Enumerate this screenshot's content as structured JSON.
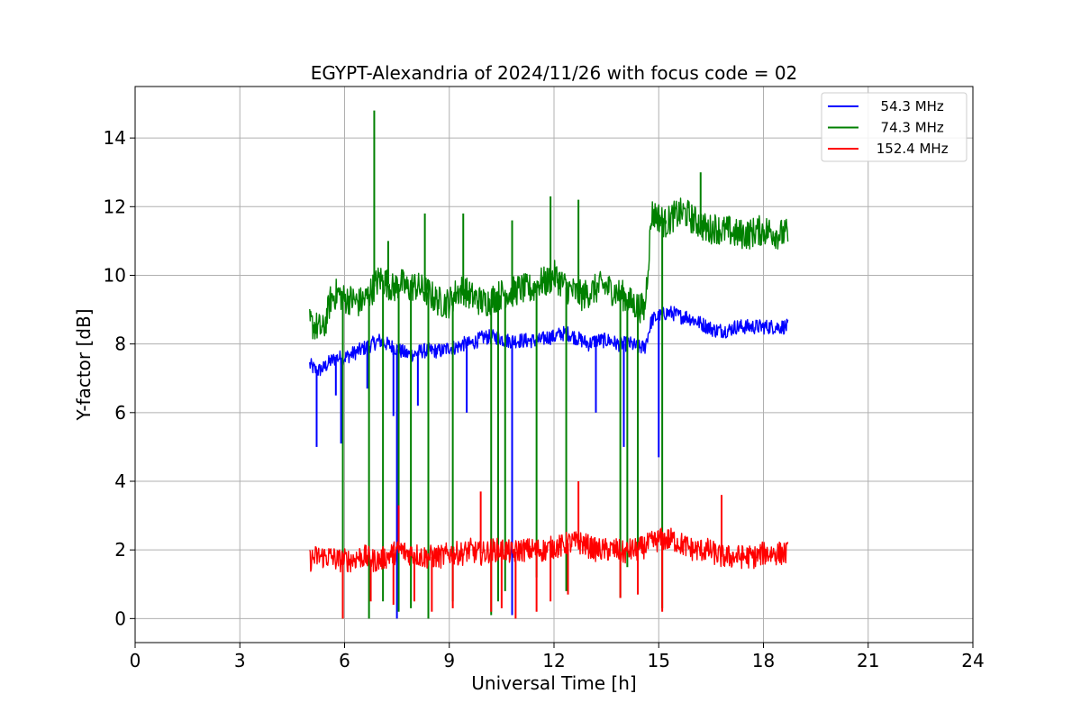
{
  "chart_data": {
    "type": "line",
    "title": "EGYPT-Alexandria of 2024/11/26 with focus code = 02",
    "xlabel": "Universal Time [h]",
    "ylabel": "Y-factor [dB]",
    "xlim": [
      0,
      24
    ],
    "ylim": [
      -0.7,
      15.5
    ],
    "xticks": [
      0,
      3,
      6,
      9,
      12,
      15,
      18,
      21,
      24
    ],
    "yticks": [
      0,
      2,
      4,
      6,
      8,
      10,
      12,
      14
    ],
    "grid": true,
    "legend_position": "top-right",
    "series": [
      {
        "name": "  54.3 MHz",
        "color": "#0000ff",
        "x": [
          5.0,
          5.2,
          5.4,
          5.6,
          5.8,
          6.0,
          6.2,
          6.4,
          6.6,
          6.8,
          7.0,
          7.2,
          7.4,
          7.6,
          7.8,
          8.0,
          8.2,
          8.4,
          8.6,
          8.8,
          9.0,
          9.2,
          9.4,
          9.6,
          9.8,
          10.0,
          10.2,
          10.4,
          10.6,
          10.8,
          11.0,
          11.2,
          11.4,
          11.6,
          11.8,
          12.0,
          12.2,
          12.4,
          12.6,
          12.8,
          13.0,
          13.2,
          13.4,
          13.6,
          13.8,
          14.0,
          14.2,
          14.4,
          14.6,
          14.8,
          15.0,
          15.2,
          15.4,
          15.6,
          15.8,
          16.0,
          16.2,
          16.4,
          16.6,
          16.8,
          17.0,
          17.2,
          17.4,
          17.6,
          17.8,
          18.0,
          18.2,
          18.4,
          18.7
        ],
        "values": [
          7.4,
          7.2,
          7.3,
          7.5,
          7.6,
          7.6,
          7.7,
          7.8,
          7.9,
          8.0,
          8.1,
          8.0,
          7.9,
          7.8,
          7.7,
          7.7,
          7.8,
          7.8,
          7.8,
          7.8,
          7.9,
          7.9,
          8.0,
          8.0,
          8.1,
          8.2,
          8.2,
          8.2,
          8.1,
          8.1,
          8.1,
          8.1,
          8.1,
          8.1,
          8.2,
          8.2,
          8.3,
          8.3,
          8.2,
          8.1,
          8.0,
          8.1,
          8.1,
          8.1,
          8.0,
          8.0,
          8.0,
          7.9,
          7.9,
          8.7,
          8.8,
          8.9,
          8.9,
          8.8,
          8.8,
          8.7,
          8.6,
          8.5,
          8.4,
          8.4,
          8.4,
          8.5,
          8.5,
          8.5,
          8.5,
          8.5,
          8.5,
          8.5,
          8.5
        ]
      },
      {
        "name": "  74.3 MHz",
        "color": "#008000",
        "x": [
          5.0,
          5.2,
          5.4,
          5.6,
          5.8,
          6.0,
          6.2,
          6.4,
          6.6,
          6.8,
          7.0,
          7.2,
          7.4,
          7.6,
          7.8,
          8.0,
          8.2,
          8.4,
          8.6,
          8.8,
          9.0,
          9.2,
          9.4,
          9.6,
          9.8,
          10.0,
          10.2,
          10.4,
          10.6,
          10.8,
          11.0,
          11.2,
          11.4,
          11.6,
          11.8,
          12.0,
          12.2,
          12.4,
          12.6,
          12.8,
          13.0,
          13.2,
          13.4,
          13.6,
          13.8,
          14.0,
          14.2,
          14.4,
          14.6,
          14.8,
          15.0,
          15.2,
          15.4,
          15.6,
          15.8,
          16.0,
          16.2,
          16.4,
          16.6,
          16.8,
          17.0,
          17.2,
          17.4,
          17.6,
          17.8,
          18.0,
          18.2,
          18.4,
          18.7
        ],
        "values": [
          8.6,
          8.5,
          8.4,
          9.3,
          9.5,
          9.3,
          9.3,
          9.2,
          9.3,
          9.6,
          9.9,
          9.8,
          9.6,
          9.8,
          9.6,
          9.7,
          9.6,
          9.5,
          9.3,
          9.2,
          9.2,
          9.5,
          9.6,
          9.4,
          9.3,
          9.2,
          9.3,
          9.4,
          9.5,
          9.5,
          9.6,
          9.6,
          9.6,
          9.8,
          9.8,
          10.0,
          9.8,
          9.6,
          9.5,
          9.4,
          9.5,
          9.6,
          9.7,
          9.6,
          9.5,
          9.4,
          9.2,
          9.1,
          9.0,
          11.8,
          11.7,
          11.5,
          11.7,
          11.8,
          11.8,
          11.6,
          11.5,
          11.3,
          11.4,
          11.3,
          11.3,
          11.2,
          11.2,
          11.2,
          11.3,
          11.3,
          11.3,
          11.2,
          11.2
        ]
      },
      {
        "name": " 152.4 MHz",
        "color": "#ff0000",
        "x": [
          5.0,
          5.2,
          5.4,
          5.6,
          5.8,
          6.0,
          6.2,
          6.4,
          6.6,
          6.8,
          7.0,
          7.2,
          7.4,
          7.6,
          7.8,
          8.0,
          8.2,
          8.4,
          8.6,
          8.8,
          9.0,
          9.2,
          9.4,
          9.6,
          9.8,
          10.0,
          10.2,
          10.4,
          10.6,
          10.8,
          11.0,
          11.2,
          11.4,
          11.6,
          11.8,
          12.0,
          12.2,
          12.4,
          12.6,
          12.8,
          13.0,
          13.2,
          13.4,
          13.6,
          13.8,
          14.0,
          14.2,
          14.4,
          14.6,
          14.8,
          15.0,
          15.2,
          15.4,
          15.6,
          15.8,
          16.0,
          16.2,
          16.4,
          16.6,
          16.8,
          17.0,
          17.2,
          17.4,
          17.6,
          17.8,
          18.0,
          18.2,
          18.4,
          18.7
        ],
        "values": [
          1.7,
          1.8,
          1.8,
          1.8,
          1.7,
          1.7,
          1.7,
          1.8,
          1.8,
          1.7,
          1.7,
          1.8,
          1.9,
          2.0,
          1.9,
          1.9,
          1.8,
          1.8,
          1.8,
          1.8,
          1.9,
          1.9,
          1.9,
          2.0,
          1.9,
          1.9,
          2.0,
          2.0,
          2.0,
          1.9,
          2.0,
          2.0,
          2.0,
          2.0,
          2.0,
          2.1,
          2.1,
          2.2,
          2.2,
          2.2,
          2.1,
          2.0,
          2.0,
          2.0,
          2.0,
          1.9,
          2.0,
          2.0,
          2.1,
          2.2,
          2.3,
          2.3,
          2.3,
          2.2,
          2.1,
          2.0,
          2.0,
          2.0,
          1.9,
          1.8,
          1.8,
          1.8,
          1.8,
          1.8,
          1.8,
          1.9,
          1.9,
          1.9,
          1.9
        ]
      }
    ],
    "spikes": {
      "54.3 MHz": [
        [
          5.2,
          5.0
        ],
        [
          5.75,
          6.5
        ],
        [
          5.9,
          5.1
        ],
        [
          6.65,
          6.7
        ],
        [
          7.4,
          5.9
        ],
        [
          7.5,
          0.0
        ],
        [
          8.1,
          6.2
        ],
        [
          9.5,
          6.0
        ],
        [
          10.8,
          0.1
        ],
        [
          13.2,
          6.0
        ],
        [
          14.0,
          5.0
        ],
        [
          14.4,
          3.2
        ],
        [
          15.0,
          4.7
        ]
      ],
      "74.3 MHz": [
        [
          5.95,
          0.0
        ],
        [
          6.7,
          0.0
        ],
        [
          6.85,
          14.8
        ],
        [
          7.1,
          0.5
        ],
        [
          7.25,
          11.0
        ],
        [
          7.55,
          0.2
        ],
        [
          7.9,
          0.3
        ],
        [
          8.3,
          11.8
        ],
        [
          8.4,
          0.0
        ],
        [
          9.1,
          0.5
        ],
        [
          9.4,
          11.8
        ],
        [
          10.2,
          0.1
        ],
        [
          10.4,
          0.5
        ],
        [
          10.6,
          0.8
        ],
        [
          10.8,
          11.6
        ],
        [
          11.5,
          1.2
        ],
        [
          11.9,
          12.3
        ],
        [
          12.35,
          0.8
        ],
        [
          12.7,
          12.2
        ],
        [
          13.9,
          0.6
        ],
        [
          14.1,
          1.5
        ],
        [
          14.4,
          0.9
        ],
        [
          15.1,
          0.3
        ],
        [
          15.2,
          11.6
        ],
        [
          16.2,
          13.0
        ]
      ],
      "152.4 MHz": [
        [
          5.95,
          0.0
        ],
        [
          6.75,
          0.5
        ],
        [
          7.4,
          0.4
        ],
        [
          7.55,
          3.3
        ],
        [
          8.0,
          0.5
        ],
        [
          8.5,
          0.2
        ],
        [
          9.1,
          0.3
        ],
        [
          9.9,
          3.7
        ],
        [
          10.2,
          0.2
        ],
        [
          10.5,
          0.3
        ],
        [
          10.9,
          0.0
        ],
        [
          11.5,
          0.2
        ],
        [
          11.9,
          0.5
        ],
        [
          12.4,
          0.7
        ],
        [
          12.7,
          4.0
        ],
        [
          13.9,
          0.6
        ],
        [
          14.4,
          0.7
        ],
        [
          15.1,
          0.2
        ],
        [
          16.8,
          3.6
        ]
      ]
    }
  }
}
